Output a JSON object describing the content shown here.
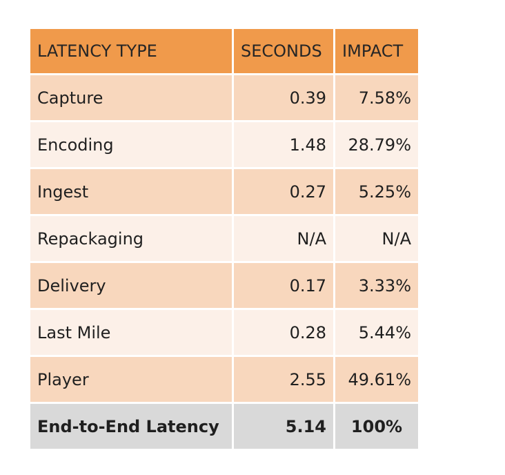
{
  "table": {
    "headers": {
      "type": "LATENCY TYPE",
      "seconds": "SECONDS",
      "impact": "IMPACT"
    },
    "rows": [
      {
        "type": "Capture",
        "seconds": "0.39",
        "impact": "7.58%"
      },
      {
        "type": "Encoding",
        "seconds": "1.48",
        "impact": "28.79%"
      },
      {
        "type": "Ingest",
        "seconds": "0.27",
        "impact": "5.25%"
      },
      {
        "type": "Repackaging",
        "seconds": "N/A",
        "impact": "N/A"
      },
      {
        "type": "Delivery",
        "seconds": "0.17",
        "impact": "3.33%"
      },
      {
        "type": "Last Mile",
        "seconds": "0.28",
        "impact": "5.44%"
      },
      {
        "type": "Player",
        "seconds": "2.55",
        "impact": "49.61%"
      }
    ],
    "total": {
      "type": "End-to-End Latency",
      "seconds": "5.14",
      "impact": "100%"
    }
  },
  "colors": {
    "header": "#f09a4b",
    "row_odd": "#f8d7bd",
    "row_even": "#fcf0e8",
    "total": "#d9d9d9"
  }
}
